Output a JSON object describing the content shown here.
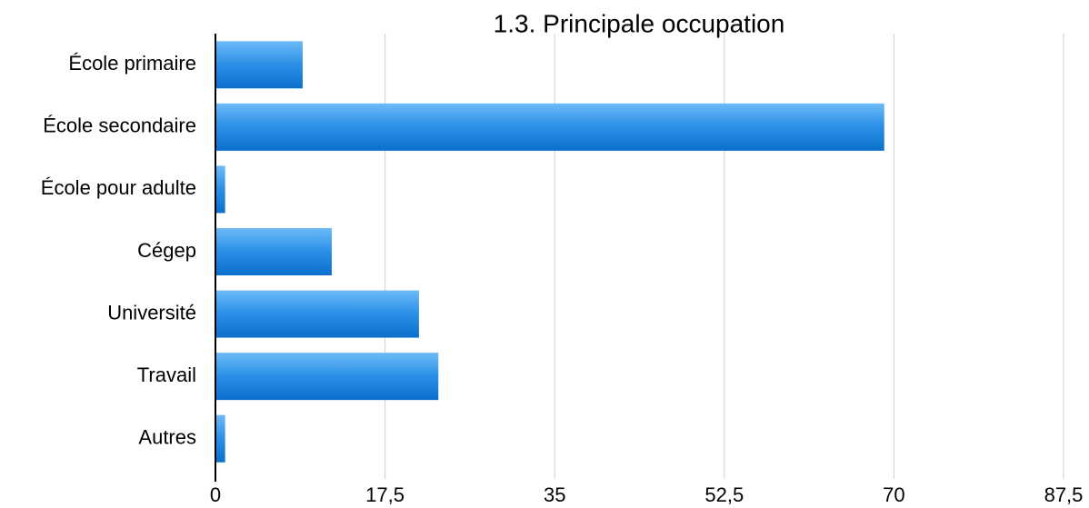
{
  "chart_data": {
    "type": "hbar",
    "title": "1.3. Principale occupation",
    "categories": [
      "École primaire",
      "École secondaire",
      "École pour adulte",
      "Cégep",
      "Université",
      "Travail",
      "Autres"
    ],
    "values": [
      9,
      69,
      1,
      12,
      21,
      23,
      1
    ],
    "color": "#2a8fe6",
    "xlim": [
      0,
      87.5
    ],
    "xticks": [
      0,
      {
        "value": 17.5,
        "label": "17,5"
      },
      35,
      {
        "value": 52.5,
        "label": "52,5"
      },
      70,
      {
        "value": 87.5,
        "label": "87,5"
      }
    ],
    "grid": true
  }
}
